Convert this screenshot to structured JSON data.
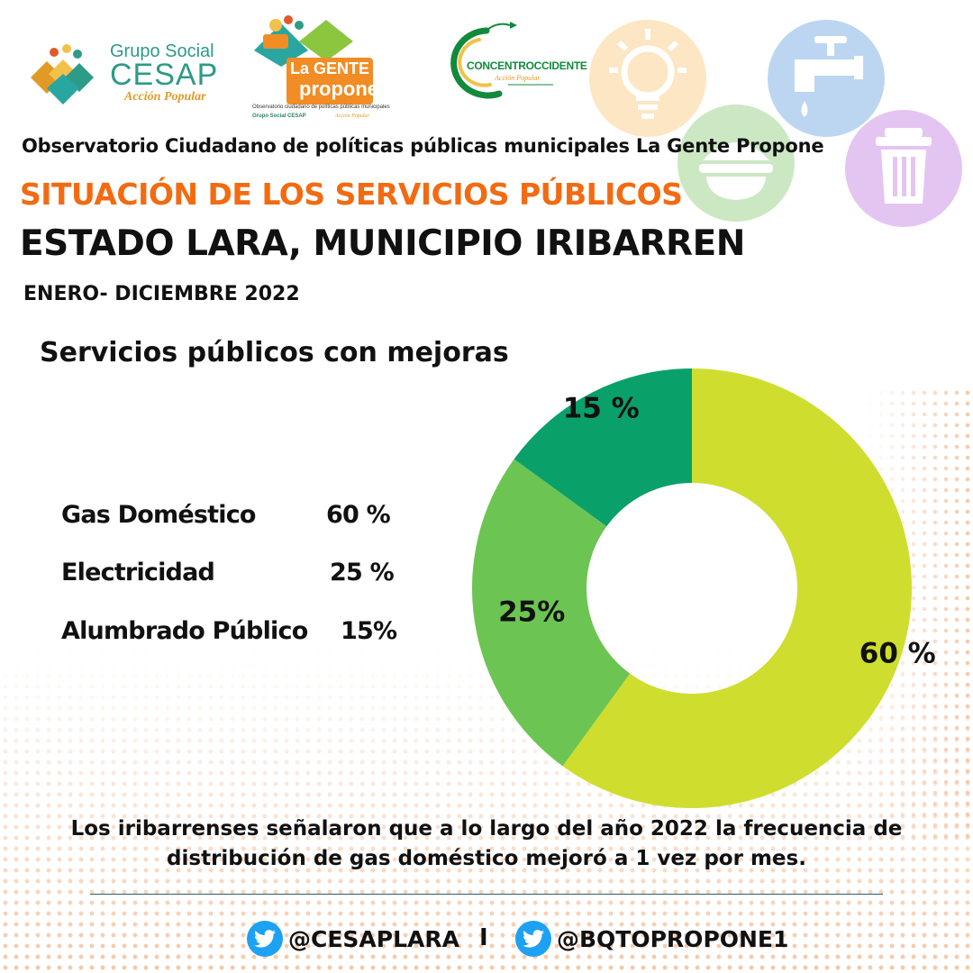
{
  "logos": {
    "cesap": {
      "line1": "Grupo Social",
      "line2": "CESAP",
      "line3": "Acción Popular"
    },
    "la_gente_propone": {
      "line1": "La GENTE",
      "line2": "propone",
      "caption": "Observatorio ciudadano de políticas públicas municipales",
      "group": "Grupo Social CESAP",
      "tagline": "Acción Popular"
    },
    "concentroccidente": {
      "name": "CONCENTROCCIDENTE",
      "tagline": "Acción Popular"
    }
  },
  "service_icons": [
    "lightbulb-icon",
    "water-tap-icon",
    "food-pot-icon",
    "trash-can-icon"
  ],
  "header": {
    "observatorio": "Observatorio Ciudadano de políticas públicas municipales La Gente Propone",
    "situacion": "SITUACIÓN DE LOS SERVICIOS PÚBLICOS",
    "estado": "ESTADO LARA, MUNICIPIO IRIBARREN",
    "periodo": "ENERO- DICIEMBRE 2022"
  },
  "legend": [
    {
      "label": "Gas Doméstico",
      "value": "60 %"
    },
    {
      "label": "Electricidad",
      "value": "25 %"
    },
    {
      "label": "Alumbrado Público",
      "value": "15%"
    }
  ],
  "chart_data": {
    "type": "pie",
    "title": "Servicios públicos con mejoras",
    "categories": [
      "Gas Doméstico",
      "Electricidad",
      "Alumbrado Público"
    ],
    "values": [
      60,
      25,
      15
    ],
    "data_labels": [
      "60 %",
      "25%",
      "15 %"
    ],
    "colors": [
      "#cfde2e",
      "#6cc552",
      "#0aa06a"
    ],
    "donut": true
  },
  "conclusion": "Los iribarrenses señalaron que a lo largo del año 2022 la frecuencia de distribución de gas doméstico mejoró a 1 vez por mes.",
  "social": {
    "handle1": "@CESAPLARA",
    "separator": "I",
    "handle2": "@BQTOPROPONE1",
    "icon": "twitter-icon"
  },
  "colors": {
    "accent_orange": "#f26b12",
    "twitter_blue": "#1da1f2",
    "dot_pattern": "#f6c7a6"
  }
}
